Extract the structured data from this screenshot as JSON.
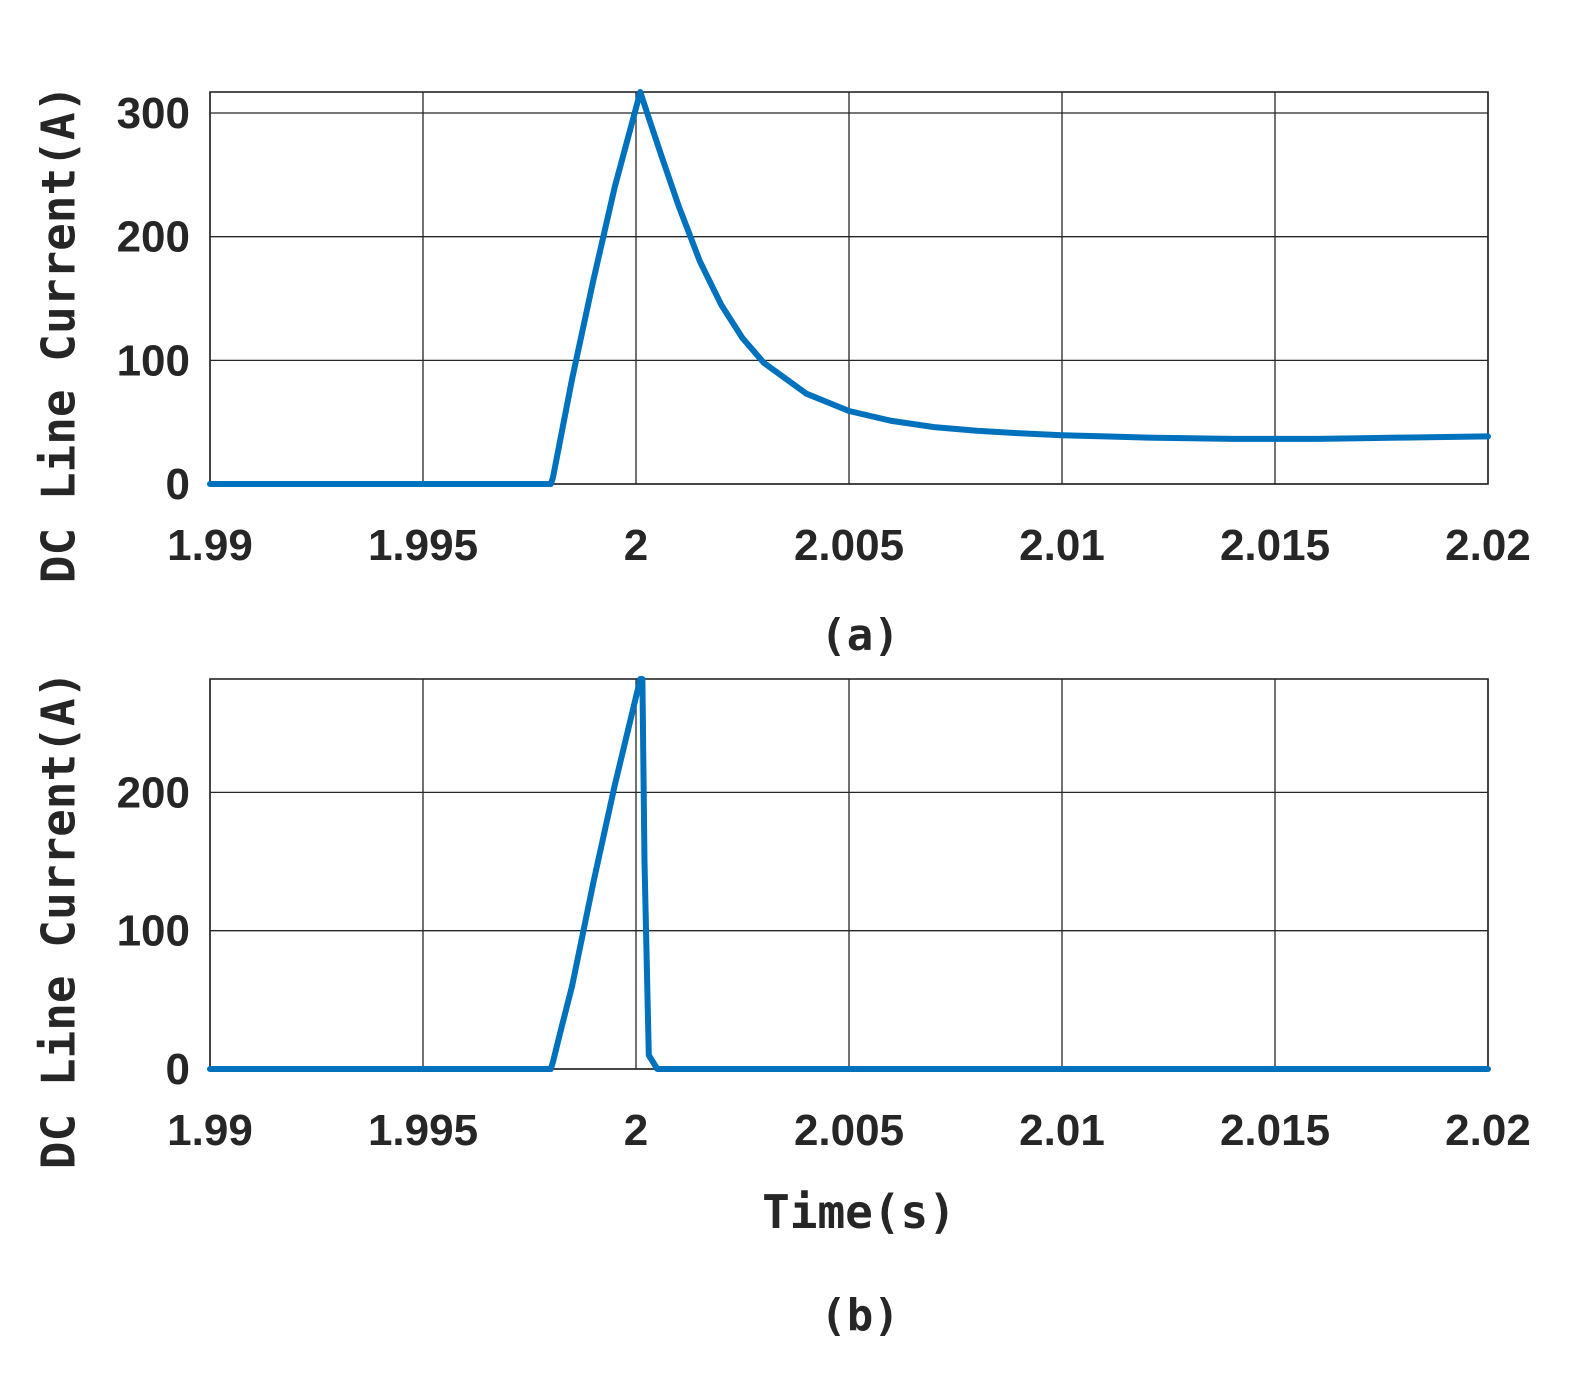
{
  "colors": {
    "line": "#0072BD",
    "axis": "#262626",
    "grid": "#262626",
    "background": "#ffffff"
  },
  "chart_data": [
    {
      "type": "line",
      "caption": "(a)",
      "xlabel": "",
      "ylabel": "DC Line Current(A)",
      "xlim": [
        1.99,
        2.02
      ],
      "ylim": [
        0,
        317
      ],
      "xticks": [
        1.99,
        1.995,
        2,
        2.005,
        2.01,
        2.015,
        2.02
      ],
      "xtick_labels": [
        "1.99",
        "1.995",
        "2",
        "2.005",
        "2.01",
        "2.015",
        "2.02"
      ],
      "yticks": [
        0,
        100,
        200,
        300
      ],
      "ytick_labels": [
        "0",
        "100",
        "200",
        "300"
      ],
      "grid": true,
      "series": [
        {
          "x": [
            1.99,
            1.998,
            1.99805,
            1.9985,
            1.999,
            1.9995,
            2.0001,
            2.0003,
            2.0006,
            2.001,
            2.0015,
            2.002,
            2.0025,
            2.003,
            2.004,
            2.005,
            2.006,
            2.007,
            2.008,
            2.009,
            2.01,
            2.011,
            2.012,
            2.013,
            2.014,
            2.015,
            2.016,
            2.017,
            2.018,
            2.019,
            2.02
          ],
          "y": [
            0,
            0,
            5,
            85,
            165,
            240,
            317,
            296,
            265,
            225,
            180,
            145,
            118,
            98,
            73,
            59,
            51,
            46,
            43,
            41,
            39.5,
            38.5,
            37.5,
            37,
            36.5,
            36.5,
            36.5,
            37,
            37.5,
            38,
            38.5
          ]
        }
      ]
    },
    {
      "type": "line",
      "caption": "(b)",
      "xlabel": "Time(s)",
      "ylabel": "DC Line Current(A)",
      "xlim": [
        1.99,
        2.02
      ],
      "ylim": [
        0,
        282
      ],
      "xticks": [
        1.99,
        1.995,
        2,
        2.005,
        2.01,
        2.015,
        2.02
      ],
      "xtick_labels": [
        "1.99",
        "1.995",
        "2",
        "2.005",
        "2.01",
        "2.015",
        "2.02"
      ],
      "yticks": [
        0,
        100,
        200
      ],
      "ytick_labels": [
        "0",
        "100",
        "200"
      ],
      "grid": true,
      "series": [
        {
          "x": [
            1.99,
            1.998,
            1.99805,
            1.99825,
            1.9985,
            1.999,
            1.9995,
            2.0001,
            2.00015,
            2.0002,
            2.0003,
            2.0005,
            2.02
          ],
          "y": [
            0,
            0,
            5,
            30,
            60,
            135,
            205,
            282,
            282,
            150,
            10,
            0,
            0
          ]
        }
      ]
    }
  ]
}
